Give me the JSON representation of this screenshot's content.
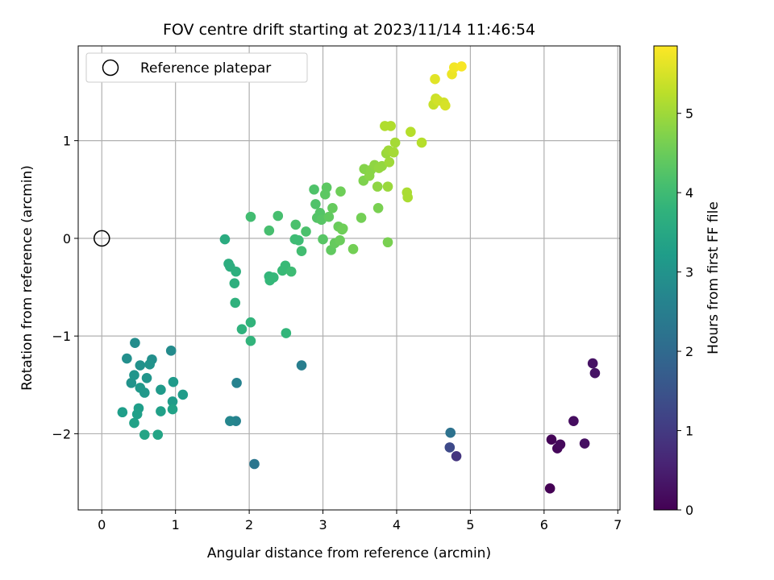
{
  "chart_data": {
    "type": "scatter",
    "title": "FOV centre drift starting at 2023/11/14 11:46:54",
    "xlabel": "Angular distance from reference (arcmin)",
    "ylabel": "Rotation from reference (arcmin)",
    "xlim": [
      -0.32,
      7.03
    ],
    "ylim": [
      -2.78,
      1.97
    ],
    "xticks": [
      0,
      1,
      2,
      3,
      4,
      5,
      6,
      7
    ],
    "yticks": [
      -2,
      -1,
      0,
      1
    ],
    "grid": true,
    "colormap": "viridis",
    "colorbar": {
      "label": "Hours from first FF file",
      "range": [
        0,
        5.85
      ],
      "ticks": [
        0,
        1,
        2,
        3,
        4,
        5
      ]
    },
    "legend": {
      "position": "top-left",
      "entries": [
        "Reference platepar"
      ]
    },
    "reference": {
      "x": 0,
      "y": 0,
      "marker": "open-circle"
    },
    "points": [
      [
        6.08,
        -2.56,
        0.0
      ],
      [
        6.1,
        -2.06,
        0.05
      ],
      [
        6.18,
        -2.15,
        0.1
      ],
      [
        6.22,
        -2.11,
        0.15
      ],
      [
        6.4,
        -1.87,
        0.2
      ],
      [
        6.55,
        -2.1,
        0.25
      ],
      [
        6.66,
        -1.28,
        0.28
      ],
      [
        6.69,
        -1.38,
        0.3
      ],
      [
        4.81,
        -2.23,
        0.9
      ],
      [
        4.72,
        -2.14,
        1.3
      ],
      [
        4.73,
        -1.99,
        2.2
      ],
      [
        2.07,
        -2.31,
        2.3
      ],
      [
        2.71,
        -1.3,
        2.5
      ],
      [
        1.82,
        -1.87,
        2.6
      ],
      [
        1.83,
        -1.48,
        2.6
      ],
      [
        1.74,
        -1.87,
        2.7
      ],
      [
        0.94,
        -1.15,
        2.8
      ],
      [
        0.45,
        -1.07,
        2.85
      ],
      [
        0.34,
        -1.23,
        2.9
      ],
      [
        0.68,
        -1.24,
        2.9
      ],
      [
        0.52,
        -1.3,
        2.95
      ],
      [
        0.65,
        -1.29,
        3.0
      ],
      [
        0.4,
        -1.48,
        3.0
      ],
      [
        0.44,
        -1.4,
        3.05
      ],
      [
        0.61,
        -1.43,
        3.05
      ],
      [
        0.52,
        -1.53,
        3.1
      ],
      [
        0.58,
        -1.58,
        3.1
      ],
      [
        0.97,
        -1.47,
        3.15
      ],
      [
        0.8,
        -1.55,
        3.15
      ],
      [
        1.1,
        -1.6,
        3.2
      ],
      [
        0.96,
        -1.67,
        3.2
      ],
      [
        0.28,
        -1.78,
        3.25
      ],
      [
        0.5,
        -1.74,
        3.25
      ],
      [
        0.48,
        -1.8,
        3.3
      ],
      [
        0.8,
        -1.77,
        3.3
      ],
      [
        0.96,
        -1.75,
        3.35
      ],
      [
        0.44,
        -1.89,
        3.35
      ],
      [
        0.58,
        -2.01,
        3.4
      ],
      [
        0.76,
        -2.01,
        3.4
      ],
      [
        1.67,
        -0.01,
        3.6
      ],
      [
        1.72,
        -0.26,
        3.65
      ],
      [
        1.74,
        -0.29,
        3.65
      ],
      [
        1.82,
        -0.34,
        3.7
      ],
      [
        1.8,
        -0.46,
        3.7
      ],
      [
        1.81,
        -0.66,
        3.75
      ],
      [
        1.9,
        -0.93,
        3.75
      ],
      [
        2.02,
        -0.86,
        3.8
      ],
      [
        2.02,
        -1.05,
        3.8
      ],
      [
        2.5,
        -0.97,
        3.85
      ],
      [
        2.27,
        -0.39,
        3.85
      ],
      [
        2.28,
        -0.43,
        3.9
      ],
      [
        2.33,
        -0.4,
        3.9
      ],
      [
        2.45,
        -0.33,
        3.95
      ],
      [
        2.49,
        -0.28,
        3.95
      ],
      [
        2.57,
        -0.34,
        4.0
      ],
      [
        2.62,
        -0.01,
        4.0
      ],
      [
        2.67,
        -0.02,
        4.0
      ],
      [
        2.71,
        -0.13,
        4.05
      ],
      [
        2.02,
        0.22,
        4.05
      ],
      [
        2.27,
        0.08,
        4.1
      ],
      [
        2.39,
        0.23,
        4.1
      ],
      [
        2.63,
        0.14,
        4.15
      ],
      [
        2.77,
        0.07,
        4.15
      ],
      [
        2.88,
        0.5,
        4.2
      ],
      [
        2.9,
        0.35,
        4.2
      ],
      [
        2.92,
        0.21,
        4.25
      ],
      [
        2.96,
        0.26,
        4.25
      ],
      [
        2.98,
        0.19,
        4.3
      ],
      [
        3.0,
        -0.01,
        4.3
      ],
      [
        3.03,
        0.45,
        4.35
      ],
      [
        3.05,
        0.52,
        4.35
      ],
      [
        3.08,
        0.22,
        4.4
      ],
      [
        3.11,
        -0.12,
        4.4
      ],
      [
        3.13,
        0.31,
        4.45
      ],
      [
        3.16,
        -0.05,
        4.45
      ],
      [
        3.21,
        0.12,
        4.5
      ],
      [
        3.23,
        -0.02,
        4.5
      ],
      [
        3.24,
        0.48,
        4.55
      ],
      [
        3.26,
        0.09,
        4.55
      ],
      [
        3.27,
        0.1,
        4.55
      ],
      [
        3.41,
        -0.11,
        4.6
      ],
      [
        3.52,
        0.21,
        4.6
      ],
      [
        3.75,
        0.31,
        4.65
      ],
      [
        3.88,
        -0.04,
        4.65
      ],
      [
        3.55,
        0.59,
        4.7
      ],
      [
        3.56,
        0.71,
        4.75
      ],
      [
        3.63,
        0.64,
        4.8
      ],
      [
        3.65,
        0.7,
        4.8
      ],
      [
        3.7,
        0.75,
        4.85
      ],
      [
        3.74,
        0.53,
        4.85
      ],
      [
        3.76,
        0.72,
        4.9
      ],
      [
        3.8,
        0.74,
        4.9
      ],
      [
        3.88,
        0.53,
        4.95
      ],
      [
        3.86,
        0.87,
        4.95
      ],
      [
        3.89,
        0.9,
        5.0
      ],
      [
        3.9,
        0.78,
        5.0
      ],
      [
        3.96,
        0.88,
        5.05
      ],
      [
        3.98,
        0.98,
        5.05
      ],
      [
        4.14,
        0.47,
        5.1
      ],
      [
        4.15,
        0.42,
        5.1
      ],
      [
        3.84,
        1.15,
        5.15
      ],
      [
        3.92,
        1.15,
        5.15
      ],
      [
        4.19,
        1.09,
        5.2
      ],
      [
        4.34,
        0.98,
        5.2
      ],
      [
        4.5,
        1.37,
        5.35
      ],
      [
        4.53,
        1.43,
        5.4
      ],
      [
        4.56,
        1.41,
        5.45
      ],
      [
        4.64,
        1.39,
        5.45
      ],
      [
        4.66,
        1.36,
        5.5
      ],
      [
        4.52,
        1.63,
        5.6
      ],
      [
        4.75,
        1.68,
        5.7
      ],
      [
        4.78,
        1.75,
        5.75
      ],
      [
        4.88,
        1.76,
        5.8
      ]
    ]
  }
}
